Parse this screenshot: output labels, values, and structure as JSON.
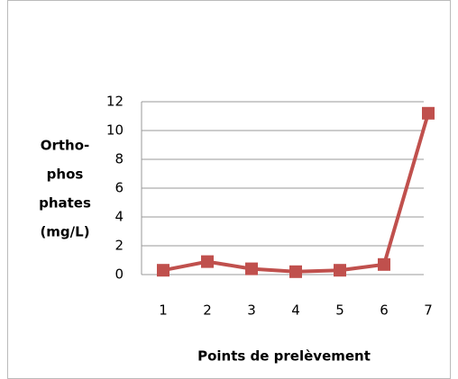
{
  "chart_data": {
    "type": "line",
    "xlabel": "Points de prelèvement",
    "ylabel": [
      "Ortho-",
      "phos",
      "phates",
      "(mg/L)"
    ],
    "categories": [
      "1",
      "2",
      "3",
      "4",
      "5",
      "6",
      "7"
    ],
    "series": [
      {
        "color": "#c0504d",
        "values": [
          0.3,
          0.9,
          0.4,
          0.2,
          0.3,
          0.7,
          11.2
        ]
      }
    ],
    "ylim": [
      0,
      12
    ],
    "yticks": [
      0,
      2,
      4,
      6,
      8,
      10,
      12
    ],
    "grid": true
  }
}
